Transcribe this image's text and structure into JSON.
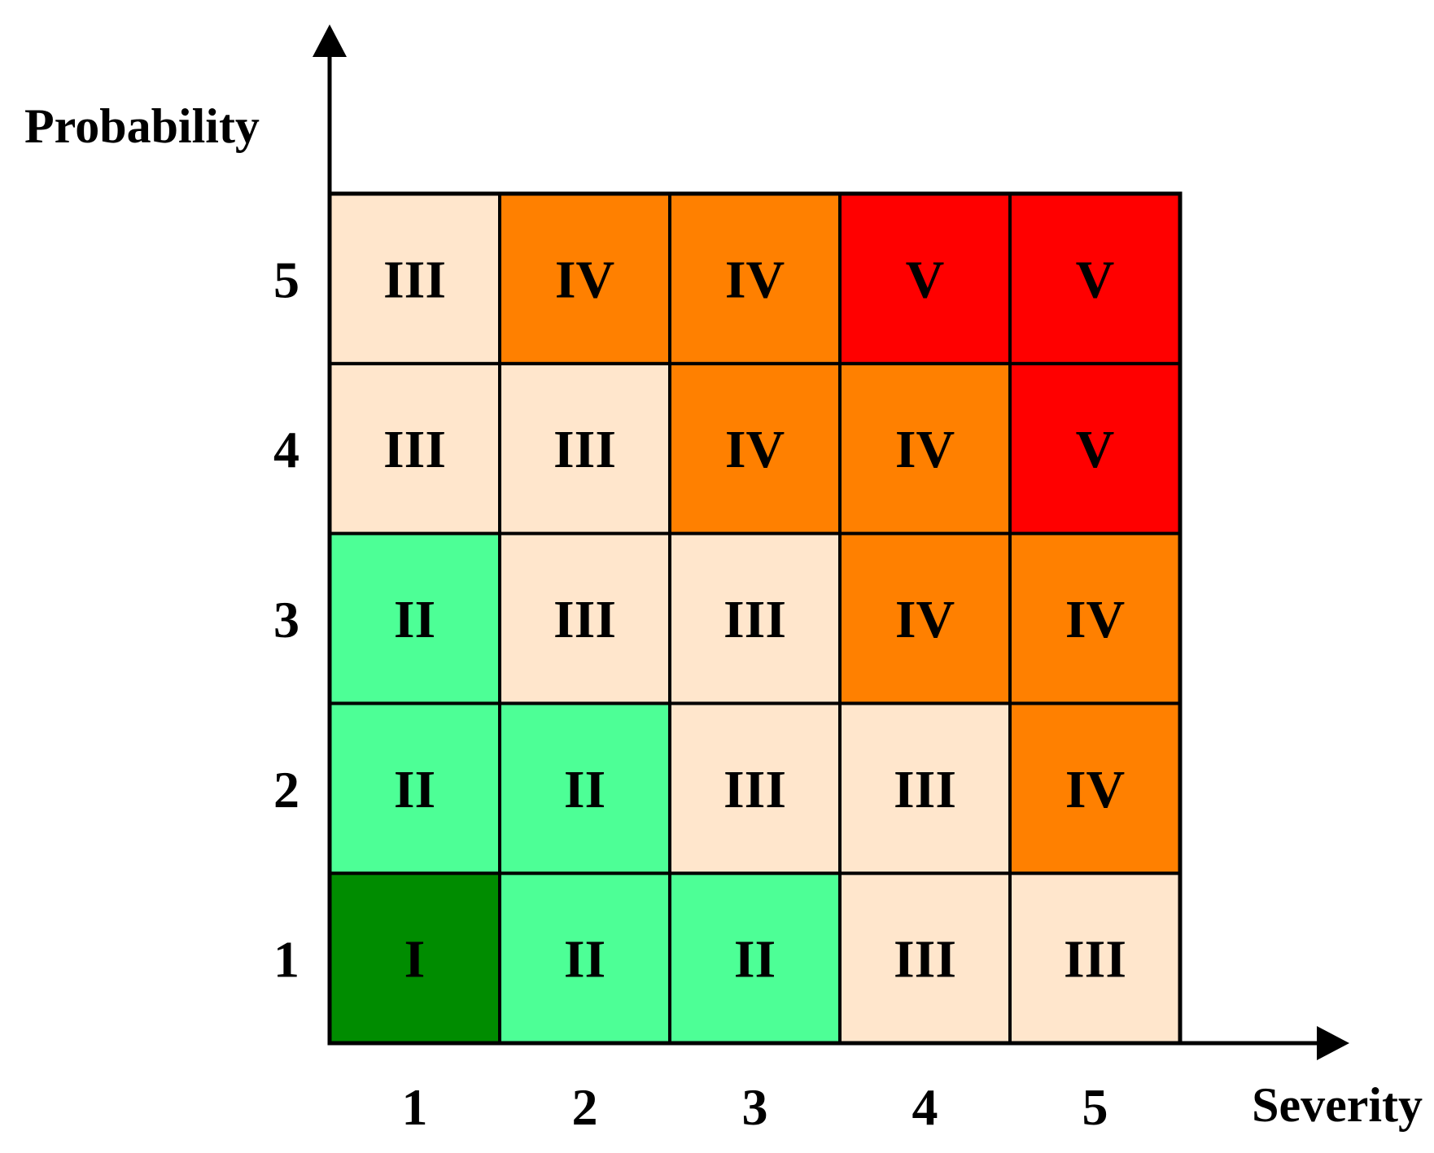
{
  "chart_data": {
    "type": "heatmap",
    "xlabel": "Severity",
    "ylabel": "Probability",
    "x_categories": [
      "1",
      "2",
      "3",
      "4",
      "5"
    ],
    "y_categories": [
      "1",
      "2",
      "3",
      "4",
      "5"
    ],
    "cells": [
      [
        "I",
        "II",
        "II",
        "III",
        "III"
      ],
      [
        "II",
        "II",
        "III",
        "III",
        "IV"
      ],
      [
        "II",
        "III",
        "III",
        "IV",
        "IV"
      ],
      [
        "III",
        "III",
        "IV",
        "IV",
        "V"
      ],
      [
        "III",
        "IV",
        "IV",
        "V",
        "V"
      ]
    ],
    "level_colors": {
      "I": "#008c00",
      "II": "#4dff96",
      "III": "#ffe6cc",
      "IV": "#ff8000",
      "V": "#ff0000"
    }
  }
}
